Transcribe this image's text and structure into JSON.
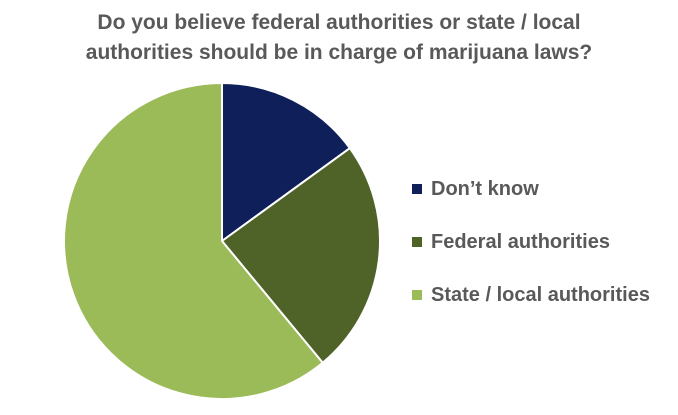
{
  "chart_data": {
    "type": "pie",
    "title": [
      "Do you believe federal authorities or state / local",
      "authorities should be in charge of marijuana laws?"
    ],
    "categories": [
      "Don’t know",
      "Federal authorities",
      "State / local authorities"
    ],
    "values": [
      15,
      24,
      61
    ],
    "colors": [
      "#0f1f5a",
      "#4f6228",
      "#9bbb59"
    ],
    "legend_position": "right"
  }
}
